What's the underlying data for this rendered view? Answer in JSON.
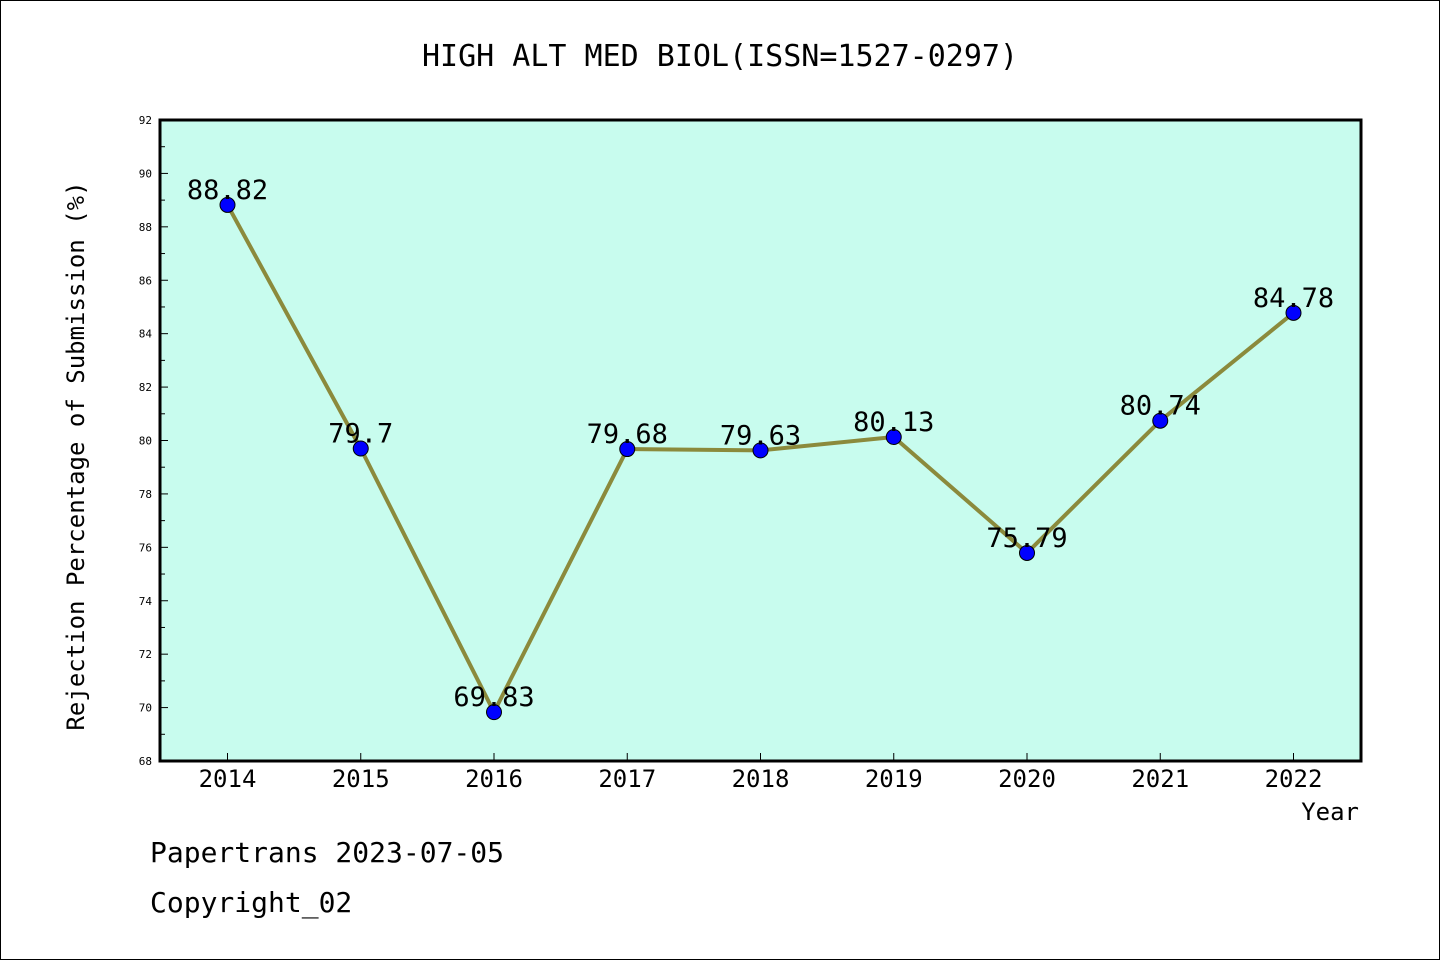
{
  "chart_data": {
    "type": "line",
    "title": "HIGH ALT MED BIOL(ISSN=1527-0297)",
    "xlabel": "Year",
    "ylabel": "Rejection Percentage of Submission (%)",
    "categories": [
      "2014",
      "2015",
      "2016",
      "2017",
      "2018",
      "2019",
      "2020",
      "2021",
      "2022"
    ],
    "values": [
      88.82,
      79.7,
      69.83,
      79.68,
      79.63,
      80.13,
      75.79,
      80.74,
      84.78
    ],
    "data_labels": [
      "88.82",
      "79.7",
      "69.83",
      "79.68",
      "79.63",
      "80.13",
      "75.79",
      "80.74",
      "84.78"
    ],
    "ylim": [
      68,
      92
    ],
    "yticks": [
      "68",
      "70",
      "72",
      "74",
      "76",
      "78",
      "80",
      "82",
      "84",
      "86",
      "88",
      "90",
      "92"
    ],
    "grid": false,
    "colors": {
      "plot_background": "#c8fcee",
      "line": "#8b8a3c",
      "marker": "#0000ff"
    }
  },
  "footer": {
    "line1": "Papertrans 2023-07-05",
    "line2": "Copyright_02"
  }
}
